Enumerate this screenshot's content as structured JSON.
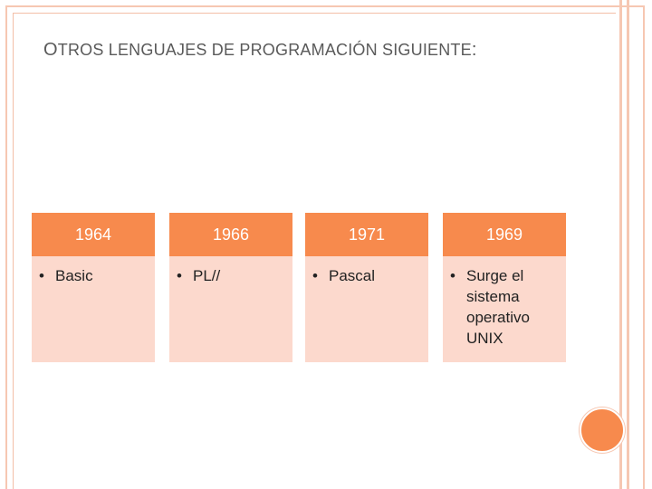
{
  "title": {
    "first_letter": "O",
    "rest_1": "TROS LENGUAJES DE PROGRAMACIÓN SIGUIENTE",
    "colon": ":"
  },
  "timeline": [
    {
      "year": "1964",
      "bullet": "•",
      "item": "Basic"
    },
    {
      "year": "1966",
      "bullet": "•",
      "item": "PL//"
    },
    {
      "year": "1971",
      "bullet": "•",
      "item": "Pascal"
    },
    {
      "year": "1969",
      "bullet": "•",
      "item": "Surge el sistema operativo UNIX"
    }
  ],
  "colors": {
    "accent": "#f78a4d",
    "card_body": "#fcd9cd",
    "frame": "#f6c7b2"
  }
}
